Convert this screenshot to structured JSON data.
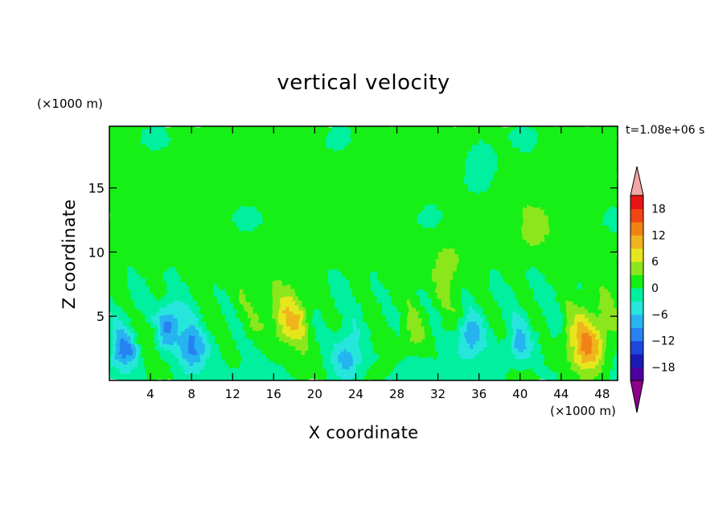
{
  "chart_data": {
    "type": "heatmap",
    "title": "vertical velocity",
    "xlabel": "X coordinate",
    "ylabel": "Z coordinate",
    "x_unit": "(×1000 m)",
    "y_unit": "(×1000 m)",
    "time_label": "t=1.08e+06 s",
    "xlim": [
      0,
      49.5
    ],
    "ylim": [
      0,
      19.8
    ],
    "x_ticks": [
      4,
      8,
      12,
      16,
      20,
      24,
      28,
      32,
      36,
      40,
      44,
      48
    ],
    "y_ticks": [
      5,
      10,
      15
    ],
    "colorbar": {
      "levels": [
        -21,
        -18,
        -15,
        -12,
        -9,
        -6,
        -3,
        0,
        3,
        6,
        9,
        12,
        15,
        18,
        21
      ],
      "tick_labels": [
        18,
        12,
        6,
        0,
        -6,
        -12,
        -18
      ],
      "colors": [
        "#8b008b",
        "#4b00a0",
        "#1a1ab4",
        "#1e46dc",
        "#2882f0",
        "#28b4f0",
        "#28e6dc",
        "#00f0a0",
        "#14f014",
        "#8ce61e",
        "#e6e61e",
        "#f0b41e",
        "#f08214",
        "#f04614",
        "#e61414",
        "#f4a6a6"
      ],
      "extend": "both"
    },
    "features": [
      {
        "x": 17.5,
        "z": 4.5,
        "w": 8,
        "type": "updraft"
      },
      {
        "x": 46.5,
        "z": 2.7,
        "w": 12,
        "type": "updraft"
      },
      {
        "x": 29.5,
        "z": 3.2,
        "w": 4,
        "type": "updraft"
      },
      {
        "x": 33.0,
        "z": 9.0,
        "w": 4,
        "type": "updraft"
      },
      {
        "x": 41.5,
        "z": 12.0,
        "w": 4,
        "type": "updraft"
      },
      {
        "x": 4.0,
        "z": 4.0,
        "w": 3,
        "type": "updraft"
      },
      {
        "x": 1.5,
        "z": 2.5,
        "w": -9,
        "type": "downdraft"
      },
      {
        "x": 5.8,
        "z": 4.3,
        "w": -11,
        "type": "downdraft"
      },
      {
        "x": 8.0,
        "z": 2.5,
        "w": -10,
        "type": "downdraft"
      },
      {
        "x": 23.2,
        "z": 1.8,
        "w": -8,
        "type": "downdraft"
      },
      {
        "x": 35.0,
        "z": 3.3,
        "w": -8,
        "type": "downdraft"
      },
      {
        "x": 40.0,
        "z": 2.8,
        "w": -7,
        "type": "downdraft"
      },
      {
        "x": 36.0,
        "z": 16.5,
        "w": -3,
        "type": "downdraft"
      }
    ]
  }
}
